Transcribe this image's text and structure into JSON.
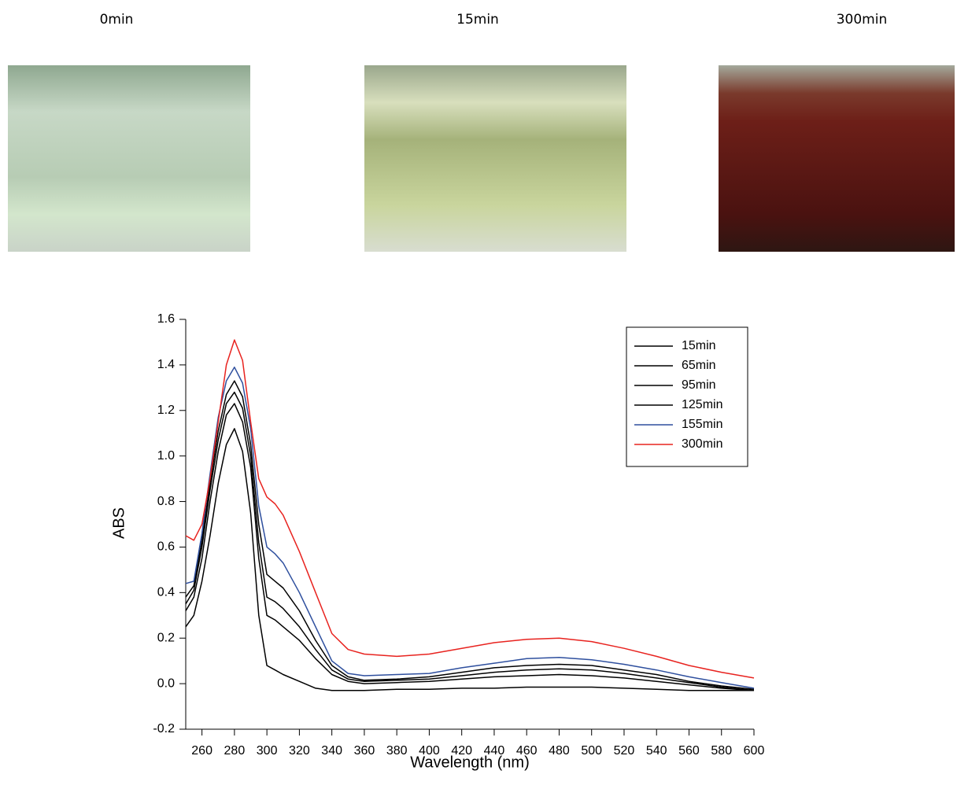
{
  "photos": [
    "0min",
    "15min",
    "300min"
  ],
  "chart_data": {
    "type": "line",
    "x_label": "Wavelength (nm)",
    "y_label": "ABS",
    "x": [
      250,
      255,
      260,
      265,
      270,
      275,
      280,
      285,
      290,
      295,
      300,
      305,
      310,
      320,
      330,
      340,
      350,
      360,
      380,
      400,
      420,
      440,
      460,
      480,
      500,
      520,
      540,
      560,
      580,
      600
    ],
    "series": [
      {
        "name": "15min",
        "color": "#000000",
        "values": [
          0.25,
          0.3,
          0.45,
          0.65,
          0.88,
          1.05,
          1.12,
          1.02,
          0.75,
          0.3,
          0.08,
          0.06,
          0.04,
          0.01,
          -0.02,
          -0.03,
          -0.03,
          -0.03,
          -0.025,
          -0.025,
          -0.02,
          -0.02,
          -0.015,
          -0.015,
          -0.015,
          -0.02,
          -0.025,
          -0.03,
          -0.03,
          -0.03
        ]
      },
      {
        "name": "65min",
        "color": "#000000",
        "values": [
          0.32,
          0.38,
          0.55,
          0.8,
          1.02,
          1.18,
          1.23,
          1.15,
          0.95,
          0.55,
          0.3,
          0.28,
          0.25,
          0.19,
          0.11,
          0.04,
          0.01,
          0.0,
          0.005,
          0.01,
          0.02,
          0.03,
          0.035,
          0.04,
          0.035,
          0.025,
          0.01,
          -0.005,
          -0.02,
          -0.03
        ]
      },
      {
        "name": "95min",
        "color": "#000000",
        "values": [
          0.35,
          0.41,
          0.6,
          0.85,
          1.07,
          1.23,
          1.28,
          1.21,
          1.0,
          0.62,
          0.38,
          0.36,
          0.33,
          0.25,
          0.15,
          0.06,
          0.02,
          0.01,
          0.015,
          0.02,
          0.035,
          0.05,
          0.06,
          0.065,
          0.06,
          0.045,
          0.025,
          0.005,
          -0.015,
          -0.03
        ]
      },
      {
        "name": "125min",
        "color": "#000000",
        "values": [
          0.38,
          0.43,
          0.63,
          0.88,
          1.11,
          1.27,
          1.33,
          1.26,
          1.05,
          0.7,
          0.48,
          0.45,
          0.42,
          0.32,
          0.19,
          0.08,
          0.03,
          0.015,
          0.02,
          0.03,
          0.05,
          0.07,
          0.08,
          0.085,
          0.08,
          0.06,
          0.04,
          0.01,
          -0.01,
          -0.025
        ]
      },
      {
        "name": "155min",
        "color": "#2e4f9e",
        "values": [
          0.44,
          0.45,
          0.66,
          0.92,
          1.17,
          1.33,
          1.39,
          1.32,
          1.12,
          0.78,
          0.6,
          0.57,
          0.53,
          0.4,
          0.25,
          0.1,
          0.045,
          0.035,
          0.04,
          0.045,
          0.07,
          0.09,
          0.11,
          0.115,
          0.105,
          0.085,
          0.06,
          0.03,
          0.005,
          -0.02
        ]
      },
      {
        "name": "300min",
        "color": "#e8231f",
        "values": [
          0.65,
          0.63,
          0.7,
          0.9,
          1.15,
          1.4,
          1.51,
          1.42,
          1.15,
          0.9,
          0.82,
          0.79,
          0.74,
          0.58,
          0.4,
          0.22,
          0.15,
          0.13,
          0.12,
          0.13,
          0.155,
          0.18,
          0.195,
          0.2,
          0.185,
          0.155,
          0.12,
          0.08,
          0.05,
          0.025
        ]
      }
    ],
    "xlim": [
      250,
      600
    ],
    "xticks": [
      260,
      280,
      300,
      320,
      340,
      360,
      380,
      400,
      420,
      440,
      460,
      480,
      500,
      520,
      540,
      560,
      580,
      600
    ],
    "ylim": [
      -0.2,
      1.6
    ],
    "yticks": [
      -0.2,
      {
        "value": 0,
        "label": "0.0"
      },
      0.2,
      0.4,
      0.6,
      0.8,
      {
        "value": 1,
        "label": "1.0"
      },
      1.2,
      1.4,
      1.6
    ],
    "legend": "upper-right"
  }
}
